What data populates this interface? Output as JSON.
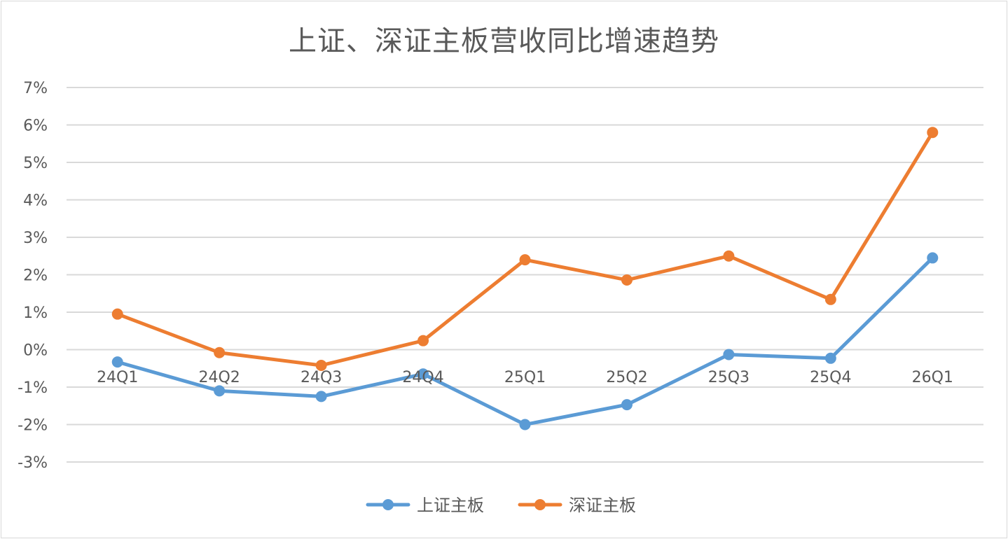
{
  "chart_data": {
    "type": "line",
    "title": "上证、深证主板营收同比增速趋势",
    "categories": [
      "24Q1",
      "24Q2",
      "24Q3",
      "24Q4",
      "25Q1",
      "25Q2",
      "25Q3",
      "25Q4",
      "26Q1"
    ],
    "y_tick_labels": [
      "7%",
      "6%",
      "5%",
      "4%",
      "3%",
      "2%",
      "1%",
      "0%",
      "-1%",
      "-2%",
      "-3%"
    ],
    "ylim": [
      -3,
      7
    ],
    "y_unit": "%",
    "grid": true,
    "legend_position": "bottom",
    "series": [
      {
        "name": "上证主板",
        "color": "#5b9bd5",
        "values": [
          -0.33,
          -1.1,
          -1.25,
          -0.65,
          -2.0,
          -1.47,
          -0.13,
          -0.23,
          2.45
        ]
      },
      {
        "name": "深证主板",
        "color": "#ed7d31",
        "values": [
          0.95,
          -0.08,
          -0.42,
          0.24,
          2.4,
          1.86,
          2.5,
          1.34,
          5.8
        ]
      }
    ]
  }
}
